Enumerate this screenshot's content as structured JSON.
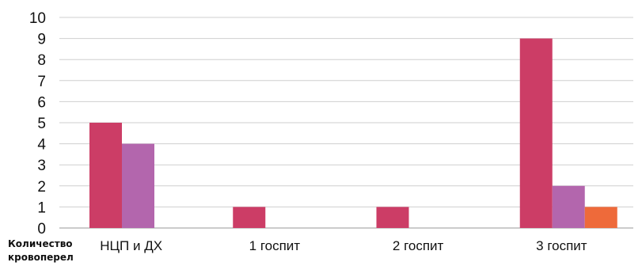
{
  "chart_data": {
    "type": "bar",
    "categories": [
      "НЦП и ДХ",
      "1 госпит",
      "2 госпит",
      "3 госпит"
    ],
    "series": [
      {
        "values": [
          5,
          1,
          1,
          9
        ],
        "color": "#cc3d66"
      },
      {
        "values": [
          4,
          0,
          0,
          2
        ],
        "color": "#b366ad"
      },
      {
        "values": [
          0,
          0,
          0,
          1
        ],
        "color": "#ee6a3a"
      }
    ],
    "ylim": [
      0,
      10
    ],
    "yticks": [
      0,
      1,
      2,
      3,
      4,
      5,
      6,
      7,
      8,
      9,
      10
    ],
    "grid": true,
    "legend": "none",
    "corner_label": "Количество кровоперел"
  }
}
